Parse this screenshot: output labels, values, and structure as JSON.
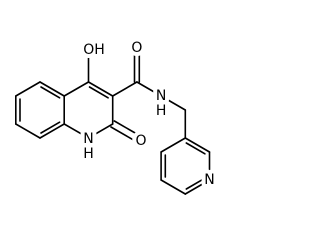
{
  "labels": {
    "hydroxyl": "OH",
    "amide_oxygen": "O",
    "ring_oxygen": "O",
    "ring_nitrogen": "N",
    "ring_nitrogen_h": "H",
    "amide_nitrogen": "N",
    "amide_nitrogen_h": "H",
    "pyridine_nitrogen": "N"
  }
}
